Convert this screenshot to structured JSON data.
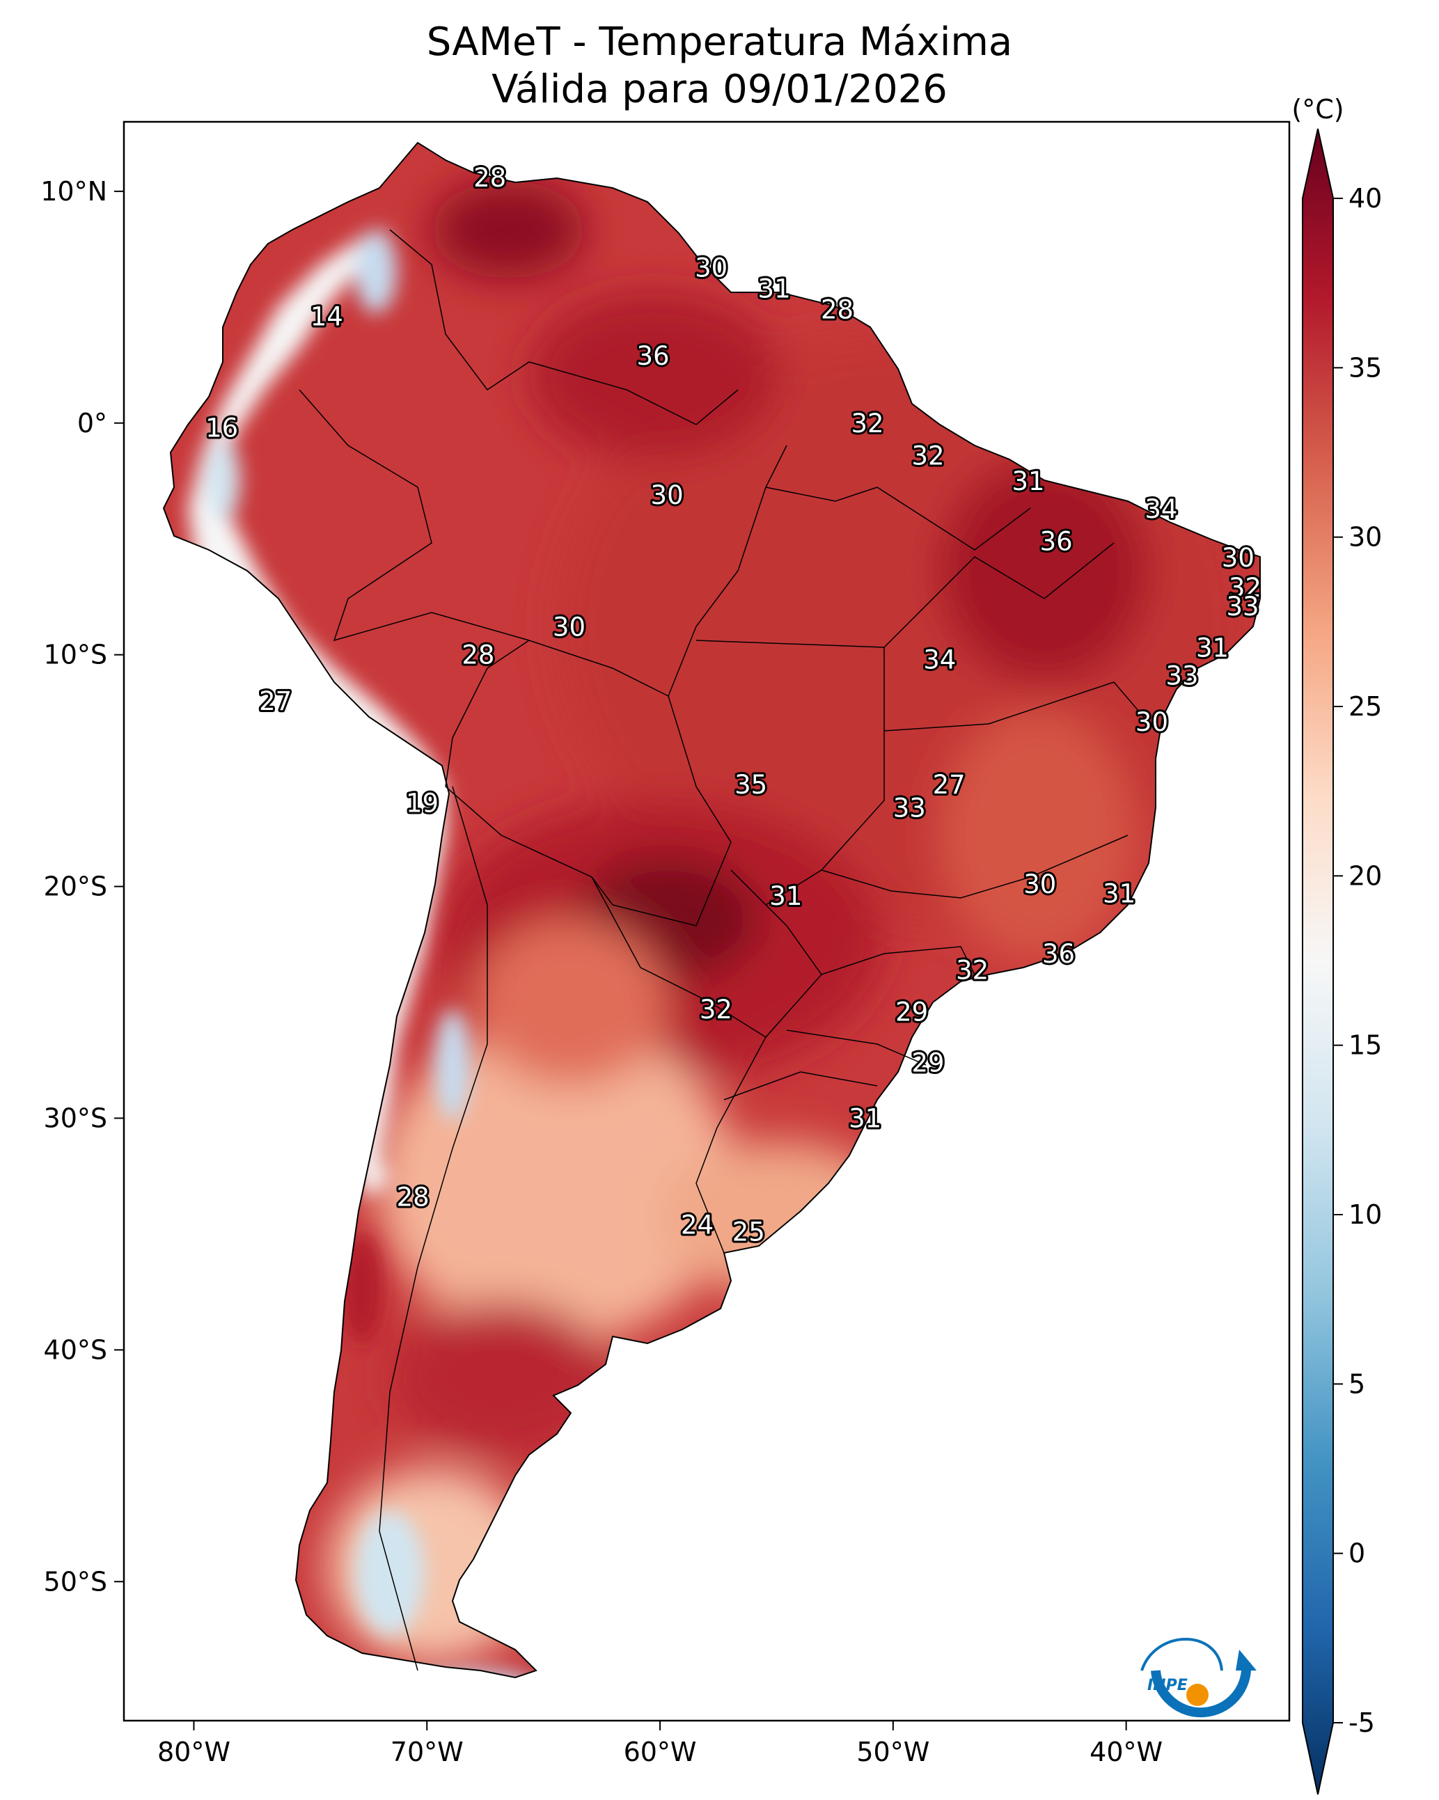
{
  "title": {
    "line1": "SAMeT - Temperatura Máxima",
    "line2": "Válida para 09/01/2026"
  },
  "map": {
    "lon_range": [
      -83,
      -33
    ],
    "lat_range": [
      -56,
      13
    ],
    "x_ticks": [
      {
        "lon": -80,
        "label": "80°W"
      },
      {
        "lon": -70,
        "label": "70°W"
      },
      {
        "lon": -60,
        "label": "60°W"
      },
      {
        "lon": -50,
        "label": "50°W"
      },
      {
        "lon": -40,
        "label": "40°W"
      }
    ],
    "y_ticks": [
      {
        "lat": 10,
        "label": "10°N"
      },
      {
        "lat": 0,
        "label": "0°"
      },
      {
        "lat": -10,
        "label": "10°S"
      },
      {
        "lat": -20,
        "label": "20°S"
      },
      {
        "lat": -30,
        "label": "30°S"
      },
      {
        "lat": -40,
        "label": "40°S"
      },
      {
        "lat": -50,
        "label": "50°S"
      }
    ],
    "station_labels": [
      {
        "lon": -67.3,
        "lat": 10.6,
        "value": "28"
      },
      {
        "lon": -57.8,
        "lat": 6.7,
        "value": "30"
      },
      {
        "lon": -55.1,
        "lat": 5.8,
        "value": "31"
      },
      {
        "lon": -52.4,
        "lat": 4.9,
        "value": "28"
      },
      {
        "lon": -74.3,
        "lat": 4.6,
        "value": "14"
      },
      {
        "lon": -60.3,
        "lat": 2.9,
        "value": "36"
      },
      {
        "lon": -51.1,
        "lat": 0.0,
        "value": "32"
      },
      {
        "lon": -78.8,
        "lat": -0.2,
        "value": "16"
      },
      {
        "lon": -48.5,
        "lat": -1.4,
        "value": "32"
      },
      {
        "lon": -44.2,
        "lat": -2.5,
        "value": "31"
      },
      {
        "lon": -59.7,
        "lat": -3.1,
        "value": "30"
      },
      {
        "lon": -38.5,
        "lat": -3.7,
        "value": "34"
      },
      {
        "lon": -43.0,
        "lat": -5.1,
        "value": "36"
      },
      {
        "lon": -35.2,
        "lat": -5.8,
        "value": "30"
      },
      {
        "lon": -34.9,
        "lat": -7.1,
        "value": "32"
      },
      {
        "lon": -35.0,
        "lat": -7.9,
        "value": "33"
      },
      {
        "lon": -63.9,
        "lat": -8.8,
        "value": "30"
      },
      {
        "lon": -36.3,
        "lat": -9.7,
        "value": "31"
      },
      {
        "lon": -67.8,
        "lat": -10.0,
        "value": "28"
      },
      {
        "lon": -48.0,
        "lat": -10.2,
        "value": "34"
      },
      {
        "lon": -37.6,
        "lat": -10.9,
        "value": "33"
      },
      {
        "lon": -76.5,
        "lat": -12.0,
        "value": "27"
      },
      {
        "lon": -38.9,
        "lat": -12.9,
        "value": "30"
      },
      {
        "lon": -56.1,
        "lat": -15.6,
        "value": "35"
      },
      {
        "lon": -47.6,
        "lat": -15.6,
        "value": "27"
      },
      {
        "lon": -49.3,
        "lat": -16.6,
        "value": "33"
      },
      {
        "lon": -70.2,
        "lat": -16.4,
        "value": "19"
      },
      {
        "lon": -43.7,
        "lat": -19.9,
        "value": "30"
      },
      {
        "lon": -54.6,
        "lat": -20.4,
        "value": "31"
      },
      {
        "lon": -40.3,
        "lat": -20.3,
        "value": "31"
      },
      {
        "lon": -42.9,
        "lat": -22.9,
        "value": "36"
      },
      {
        "lon": -46.6,
        "lat": -23.6,
        "value": "32"
      },
      {
        "lon": -57.6,
        "lat": -25.3,
        "value": "32"
      },
      {
        "lon": -49.2,
        "lat": -25.4,
        "value": "29"
      },
      {
        "lon": -48.5,
        "lat": -27.6,
        "value": "29"
      },
      {
        "lon": -51.2,
        "lat": -30.0,
        "value": "31"
      },
      {
        "lon": -70.6,
        "lat": -33.4,
        "value": "28"
      },
      {
        "lon": -58.4,
        "lat": -34.6,
        "value": "24"
      },
      {
        "lon": -56.2,
        "lat": -34.9,
        "value": "25"
      }
    ]
  },
  "colorbar": {
    "unit": "(°C)",
    "min": -5,
    "max": 40,
    "ticks": [
      "40",
      "35",
      "30",
      "25",
      "20",
      "15",
      "10",
      "5",
      "0",
      "-5"
    ],
    "colors": [
      "#053061",
      "#2166ac",
      "#4393c3",
      "#92c5de",
      "#d1e5f0",
      "#f7f7f7",
      "#fddbc7",
      "#f4a582",
      "#d6604d",
      "#b2182b",
      "#67001f"
    ]
  },
  "logo": {
    "text": "INPE",
    "colors": {
      "blue": "#0b72b9",
      "orange": "#f39200"
    }
  },
  "land_colors": {
    "hot_dark": "#8f0d22",
    "hot": "#b21f2c",
    "warm": "#c6393a",
    "mild": "#e07560",
    "cool": "#f4b398",
    "andes": "#f7f7f7",
    "cold": "#9ecae1"
  }
}
